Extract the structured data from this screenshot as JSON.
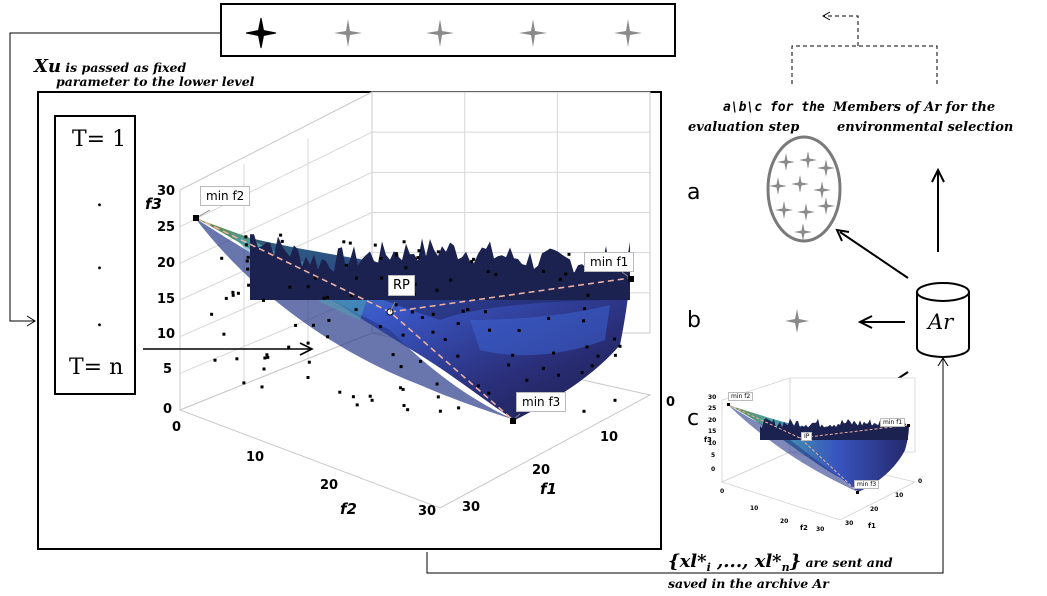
{
  "caption_xu": {
    "var": "Xu",
    "rest_line1": " is passed as  fixed",
    "line2": "parameter to the lower level"
  },
  "tbox": {
    "first": "T= 1",
    "dots": [
      ".",
      ".",
      "."
    ],
    "last": "T= n"
  },
  "plot_main": {
    "y_axis_label": "f3",
    "y_ticks": [
      "30",
      "25",
      "20",
      "15",
      "10",
      "5",
      "0"
    ],
    "x_axis_label": "f2",
    "x_ticks": [
      "0",
      "10",
      "20",
      "30"
    ],
    "z_axis_label": "f1",
    "z_ticks": [
      "0",
      "10",
      "20",
      "30"
    ],
    "annotations": {
      "min_f2": "min f2",
      "min_f1": "min f1",
      "rp": "RP",
      "min_f3": "min f3"
    }
  },
  "right_panel": {
    "label_abc": "a\\b\\c for the",
    "label_eval": "evaluation step",
    "label_members": "Members of Ar for the",
    "label_env": "environmental selection",
    "letter_a": "a",
    "letter_b": "b",
    "letter_c": "c",
    "archive_label": "Ar"
  },
  "plot_small": {
    "annotations": {
      "min_f2": "min f2",
      "min_f1": "min f1",
      "ip": "IP",
      "min_f3": "min f3"
    },
    "y_ticks": [
      "30",
      "25",
      "20",
      "15",
      "10",
      "5",
      "0"
    ],
    "x_ticks": [
      "0",
      "10",
      "20",
      "30"
    ],
    "z_ticks": [
      "0",
      "10",
      "20",
      "30"
    ],
    "x_label": "f2",
    "z_label": "f1",
    "y_label": "f3"
  },
  "bottom_caption": {
    "set_open": "{xl*",
    "sub_i": "i",
    "mid": " ,..., xl*",
    "sub_n": "n",
    "set_close": "}",
    "line1_rest": " are sent and",
    "line2": "saved in the archive Ar"
  },
  "colors": {
    "surface_dark": "#1f2a5a",
    "surface_mid": "#3b56c8",
    "surface_light": "#4aa5b0",
    "surface_green": "#5f8a45",
    "dashed": "#e9a9a0",
    "star": "#8a8a8a"
  }
}
